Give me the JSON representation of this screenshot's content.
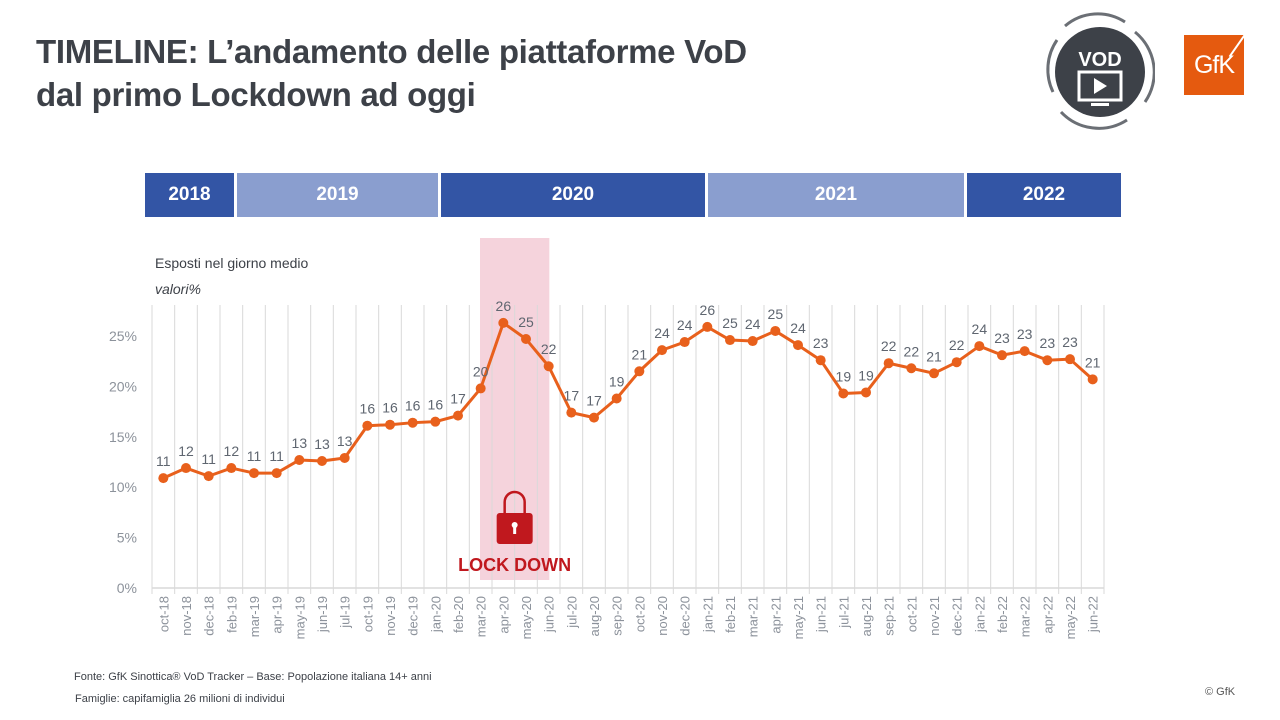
{
  "header": {
    "title_line1": "TIMELINE: L’andamento delle piattaforme VoD",
    "title_line2": "dal primo Lockdown ad oggi",
    "vod_badge_label": "VOD",
    "vod_badge_icon": "tv-play-icon",
    "brand_logo": "GfK"
  },
  "years": [
    {
      "label": "2018",
      "shade": "dark"
    },
    {
      "label": "2019",
      "shade": "light"
    },
    {
      "label": "2020",
      "shade": "dark"
    },
    {
      "label": "2021",
      "shade": "light"
    },
    {
      "label": "2022",
      "shade": "dark"
    }
  ],
  "colors": {
    "line": "#e8601c",
    "year_dark": "#3355a5",
    "year_light": "#8a9ecf",
    "lockdown_band": "#f5d3dc",
    "lockdown_text": "#c0181e",
    "label_text": "#5f6670",
    "axis_text": "#8c929b",
    "grid": "#d9d9d9"
  },
  "chart_data": {
    "type": "line",
    "title": "Esposti nel giorno medio",
    "subtitle": "valori%",
    "xlabel": "",
    "ylabel": "",
    "ylim": [
      0,
      25
    ],
    "yticks": [
      "0%",
      "5%",
      "10%",
      "15%",
      "20%",
      "25%"
    ],
    "grid": "vertical",
    "categories": [
      "oct-18",
      "nov-18",
      "dec-18",
      "feb-19",
      "mar-19",
      "apr-19",
      "may-19",
      "jun-19",
      "jul-19",
      "oct-19",
      "nov-19",
      "dec-19",
      "jan-20",
      "feb-20",
      "mar-20",
      "apr-20",
      "may-20",
      "jun-20",
      "jul-20",
      "aug-20",
      "sep-20",
      "oct-20",
      "nov-20",
      "dec-20",
      "jan-21",
      "feb-21",
      "mar-21",
      "apr-21",
      "may-21",
      "jun-21",
      "jul-21",
      "aug-21",
      "sep-21",
      "oct-21",
      "nov-21",
      "dec-21",
      "jan-22",
      "feb-22",
      "mar-22",
      "apr-22",
      "may-22",
      "jun-22"
    ],
    "series": [
      {
        "name": "Esposti nel giorno medio",
        "values": [
          10.9,
          11.9,
          11.1,
          11.9,
          11.4,
          11.4,
          12.7,
          12.6,
          12.9,
          16.1,
          16.2,
          16.4,
          16.5,
          17.1,
          19.8,
          26.3,
          24.7,
          22.0,
          17.4,
          16.9,
          18.8,
          21.5,
          23.6,
          24.4,
          25.9,
          24.6,
          24.5,
          25.5,
          24.1,
          22.6,
          19.3,
          19.4,
          22.3,
          21.8,
          21.3,
          22.4,
          24.0,
          23.1,
          23.5,
          22.6,
          22.7,
          20.7
        ],
        "labels": [
          "11",
          "12",
          "11",
          "12",
          "11",
          "11",
          "13",
          "13",
          "13",
          "16",
          "16",
          "16",
          "16",
          "17",
          "20",
          "26",
          "25",
          "22",
          "17",
          "17",
          "19",
          "21",
          "24",
          "24",
          "26",
          "25",
          "24",
          "25",
          "24",
          "23",
          "19",
          "19",
          "22",
          "22",
          "21",
          "22",
          "24",
          "23",
          "23",
          "23",
          "23",
          "21"
        ]
      }
    ],
    "annotations": [
      {
        "text": "LOCK DOWN",
        "span": [
          "apr-20",
          "may-20"
        ],
        "icon": "lock-icon"
      }
    ]
  },
  "footer": {
    "source": "Fonte: GfK Sinottica® VoD Tracker – Base: Popolazione italiana 14+ anni",
    "note": "Famiglie: capifamiglia 26 milioni di individui",
    "copyright": "© GfK"
  }
}
